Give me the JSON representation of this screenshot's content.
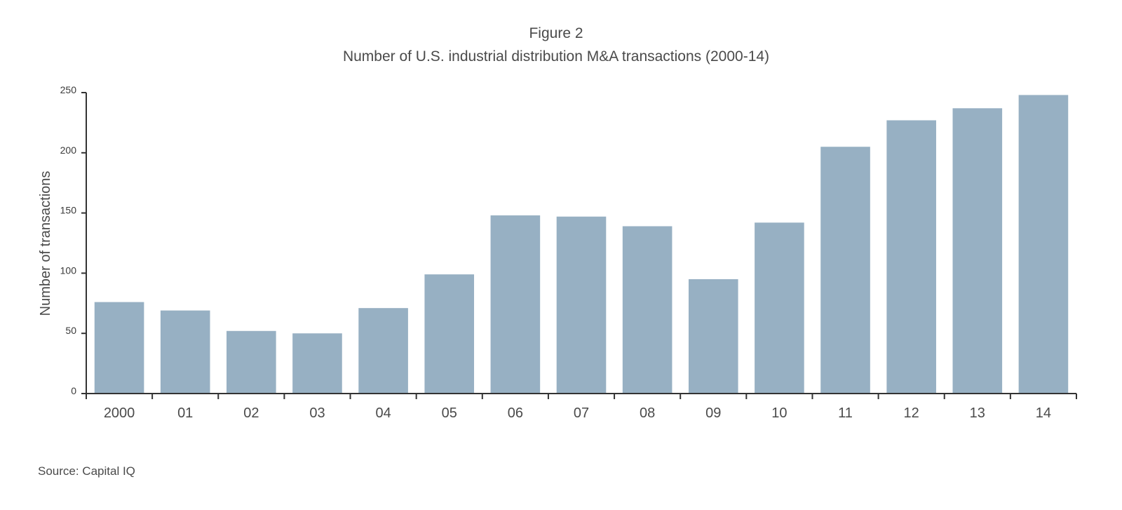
{
  "figure_label": "Figure 2",
  "source": "Source: Capital IQ",
  "colors": {
    "bar": "#97b0c3",
    "axis": "#333333",
    "text": "#4a4a4a"
  },
  "chart_data": {
    "type": "bar",
    "title": "Number of U.S. industrial distribution M&A transactions (2000-14)",
    "xlabel": "",
    "ylabel": "Number of transactions",
    "ylim": [
      0,
      250
    ],
    "yticks": [
      0,
      50,
      100,
      150,
      200,
      250
    ],
    "grid": false,
    "categories": [
      "2000",
      "01",
      "02",
      "03",
      "04",
      "05",
      "06",
      "07",
      "08",
      "09",
      "10",
      "11",
      "12",
      "13",
      "14"
    ],
    "values": [
      76,
      69,
      52,
      50,
      71,
      99,
      148,
      147,
      139,
      95,
      142,
      205,
      227,
      237,
      248
    ]
  }
}
